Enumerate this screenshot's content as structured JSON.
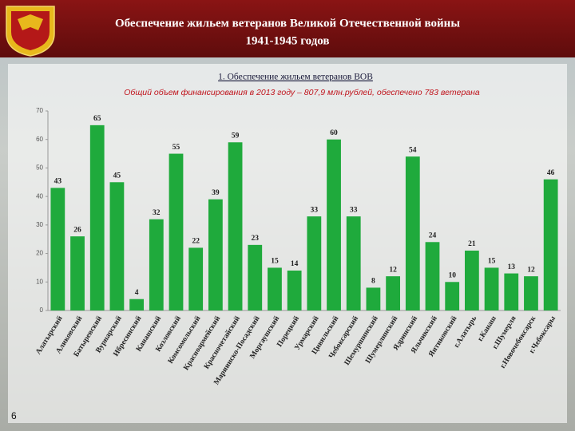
{
  "header": {
    "title": "Обеспечение жильем ветеранов Великой Отечественной войны",
    "subtitle": "1941-1945 годов"
  },
  "page_number": 6,
  "chart_data": {
    "type": "bar",
    "title": "1. Обеспечение жильем ветеранов ВОВ",
    "subtitle": "Общий объем финансирования в 2013 году – 807,9 млн.рублей, обеспечено 783 ветерана",
    "categories": [
      "Алатырский",
      "Аликовский",
      "Батыревский",
      "Вурнарский",
      "Ибресинский",
      "Канашский",
      "Козловский",
      "Комсомольский",
      "Красноармейский",
      "Красночетайский",
      "Мариинско-Посадский",
      "Моргаушский",
      "Порецкий",
      "Урмарский",
      "Цивильский",
      "Чебоксарский",
      "Шемуршинский",
      "Шумерлинский",
      "Ядринский",
      "Яльчикский",
      "Янтиковский",
      "г.Алатырь",
      "г.Канаш",
      "г.Шумерля",
      "г.Новочебоксарск",
      "г.Чебоксары"
    ],
    "values": [
      43,
      26,
      65,
      45,
      4,
      32,
      55,
      22,
      39,
      59,
      23,
      15,
      14,
      33,
      60,
      33,
      8,
      12,
      54,
      24,
      10,
      21,
      15,
      13,
      12,
      46
    ],
    "color": "#1faa3c",
    "ylim": [
      0,
      70
    ],
    "yticks": [
      0,
      10,
      20,
      30,
      40,
      50,
      60,
      70
    ],
    "grid": false
  }
}
